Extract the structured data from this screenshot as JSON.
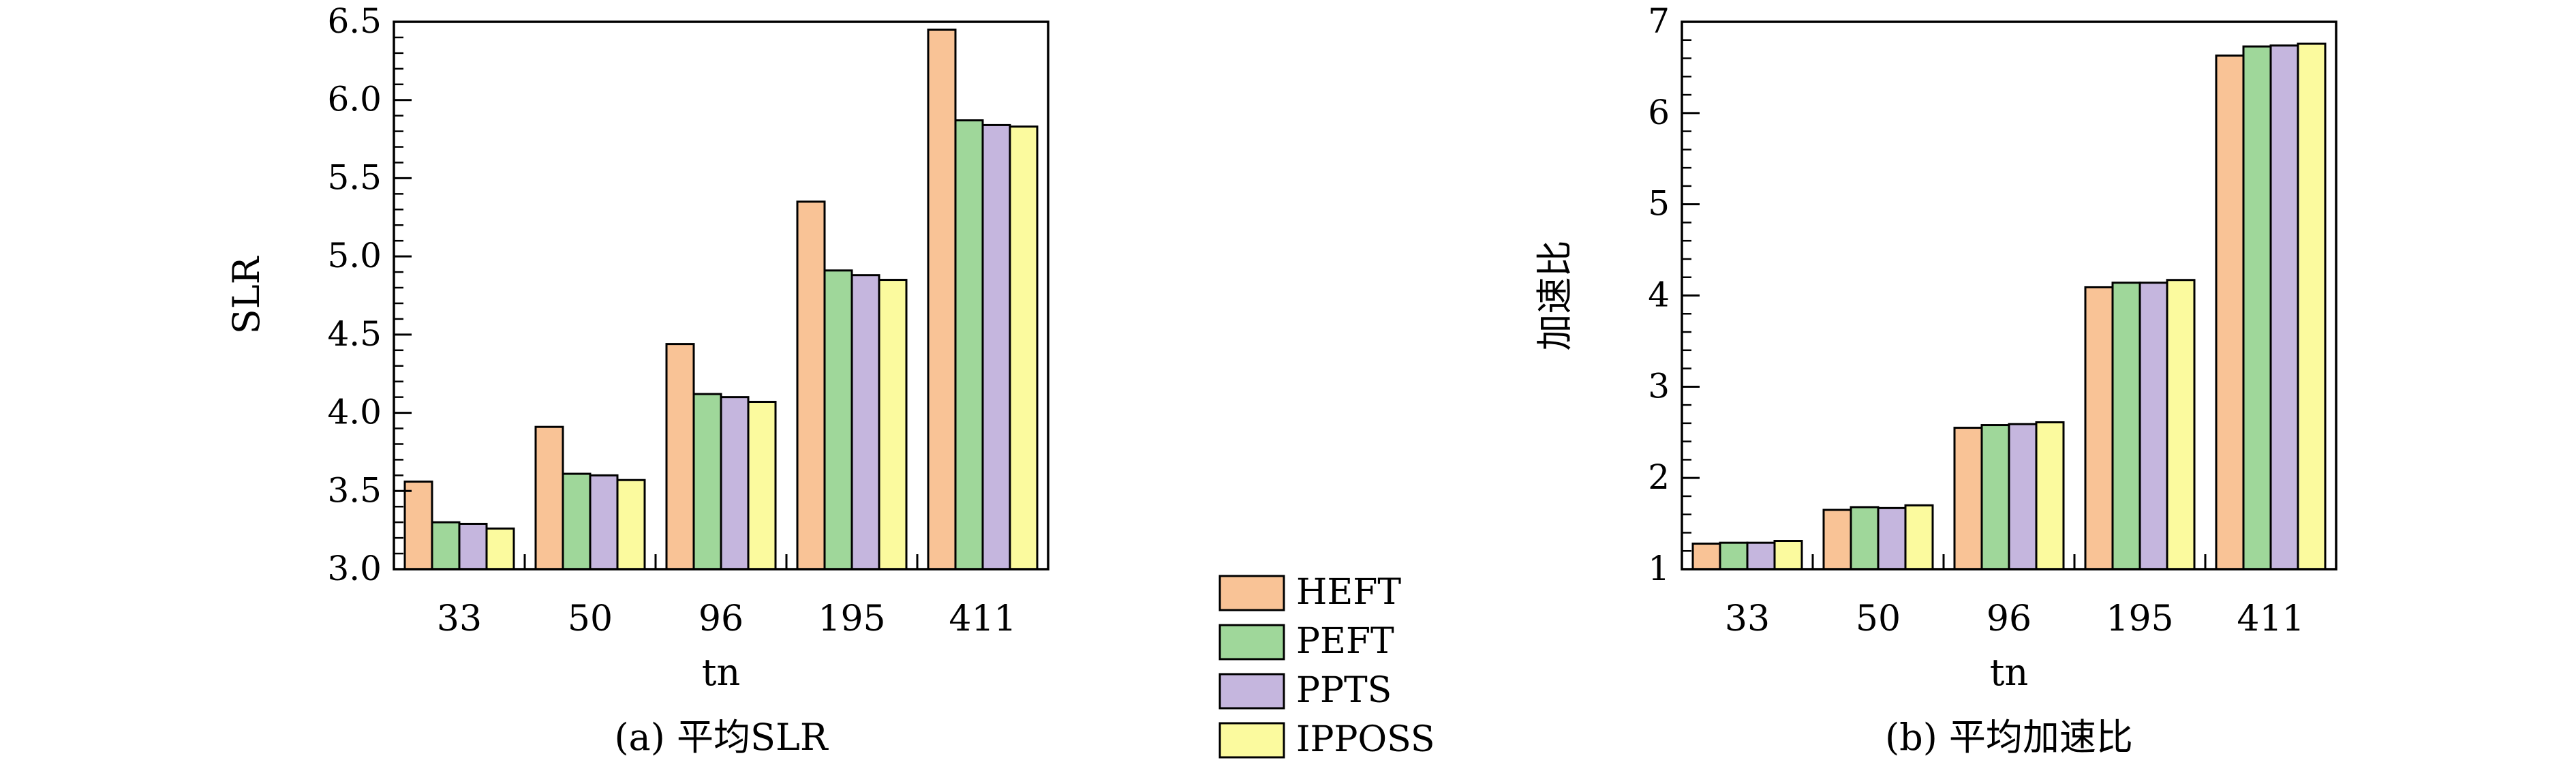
{
  "legend": {
    "items": [
      {
        "label": "HEFT",
        "color": "#f9c396"
      },
      {
        "label": "PEFT",
        "color": "#9fd79a"
      },
      {
        "label": "PPTS",
        "color": "#c5b6de"
      },
      {
        "label": "IPPOSS",
        "color": "#fbfa9e"
      }
    ],
    "placement": "bottom-center"
  },
  "chart_data": [
    {
      "type": "bar",
      "title": "",
      "caption": "(a) 平均SLR",
      "xlabel": "tn",
      "ylabel": "SLR",
      "categories": [
        "33",
        "50",
        "96",
        "195",
        "411"
      ],
      "ylim": [
        3.0,
        6.5
      ],
      "yticks": [
        3.0,
        3.5,
        4.0,
        4.5,
        5.0,
        5.5,
        6.0,
        6.5
      ],
      "ytick_labels": [
        "3.0",
        "3.5",
        "4.0",
        "4.5",
        "5.0",
        "5.5",
        "6.0",
        "6.5"
      ],
      "grid": false,
      "series": [
        {
          "name": "HEFT",
          "values": [
            3.56,
            3.91,
            4.44,
            5.35,
            6.45
          ]
        },
        {
          "name": "PEFT",
          "values": [
            3.3,
            3.61,
            4.12,
            4.91,
            5.87
          ]
        },
        {
          "name": "PPTS",
          "values": [
            3.29,
            3.6,
            4.1,
            4.88,
            5.84
          ]
        },
        {
          "name": "IPPOSS",
          "values": [
            3.26,
            3.57,
            4.07,
            4.85,
            5.83
          ]
        }
      ]
    },
    {
      "type": "bar",
      "title": "",
      "caption": "(b) 平均加速比",
      "xlabel": "tn",
      "ylabel": "加速比",
      "categories": [
        "33",
        "50",
        "96",
        "195",
        "411"
      ],
      "ylim": [
        1,
        7
      ],
      "yticks": [
        1,
        2,
        3,
        4,
        5,
        6,
        7
      ],
      "ytick_labels": [
        "1",
        "2",
        "3",
        "4",
        "5",
        "6",
        "7"
      ],
      "grid": false,
      "series": [
        {
          "name": "HEFT",
          "values": [
            1.28,
            1.65,
            2.55,
            4.09,
            6.63
          ]
        },
        {
          "name": "PEFT",
          "values": [
            1.29,
            1.68,
            2.58,
            4.14,
            6.73
          ]
        },
        {
          "name": "PPTS",
          "values": [
            1.29,
            1.67,
            2.59,
            4.14,
            6.74
          ]
        },
        {
          "name": "IPPOSS",
          "values": [
            1.31,
            1.7,
            2.61,
            4.17,
            6.76
          ]
        }
      ]
    }
  ]
}
